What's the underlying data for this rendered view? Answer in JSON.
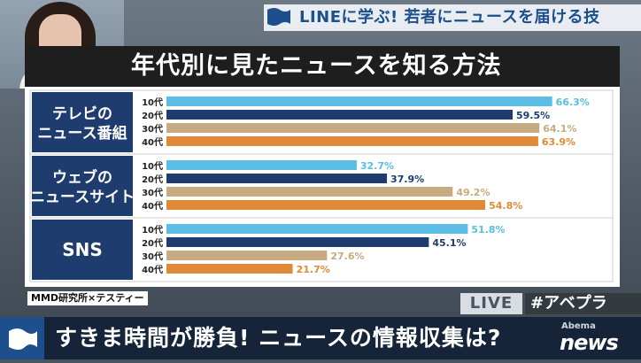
{
  "header": {
    "title": "LINEに学ぶ! 若者にニュースを届ける技"
  },
  "chart_data": {
    "type": "bar",
    "orientation": "horizontal",
    "title": "年代別に見たニュースを知る方法",
    "xlim": [
      0,
      70
    ],
    "grid": false,
    "categories": [
      "10代",
      "20代",
      "30代",
      "40代"
    ],
    "groups": [
      {
        "label": [
          "テレビの",
          "ニュース番組"
        ],
        "values": [
          66.3,
          59.5,
          64.1,
          63.9
        ],
        "value_labels": [
          "66.3%",
          "59.5%",
          "64.1%",
          "63.9%"
        ]
      },
      {
        "label": [
          "ウェブの",
          "ニュースサイト"
        ],
        "values": [
          32.7,
          37.9,
          49.2,
          54.8
        ],
        "value_labels": [
          "32.7%",
          "37.9%",
          "49.2%",
          "54.8%"
        ]
      },
      {
        "label": [
          "SNS"
        ],
        "values": [
          51.8,
          45.1,
          27.6,
          21.7
        ],
        "value_labels": [
          "51.8%",
          "45.1%",
          "27.6%",
          "21.7%"
        ]
      }
    ],
    "colors": [
      "#5bbde3",
      "#1f3c6e",
      "#c7aa7f",
      "#e08a37"
    ],
    "group_label_bg": "#1f3c6e"
  },
  "source": "MMD研究所×テスティー",
  "live": {
    "badge": "LIVE",
    "hashtag": "#アベプラ"
  },
  "ticker": {
    "text": "すきま時間が勝負! ニュースの情報収集は?"
  },
  "brand": {
    "small": "Abema",
    "big": "news"
  }
}
